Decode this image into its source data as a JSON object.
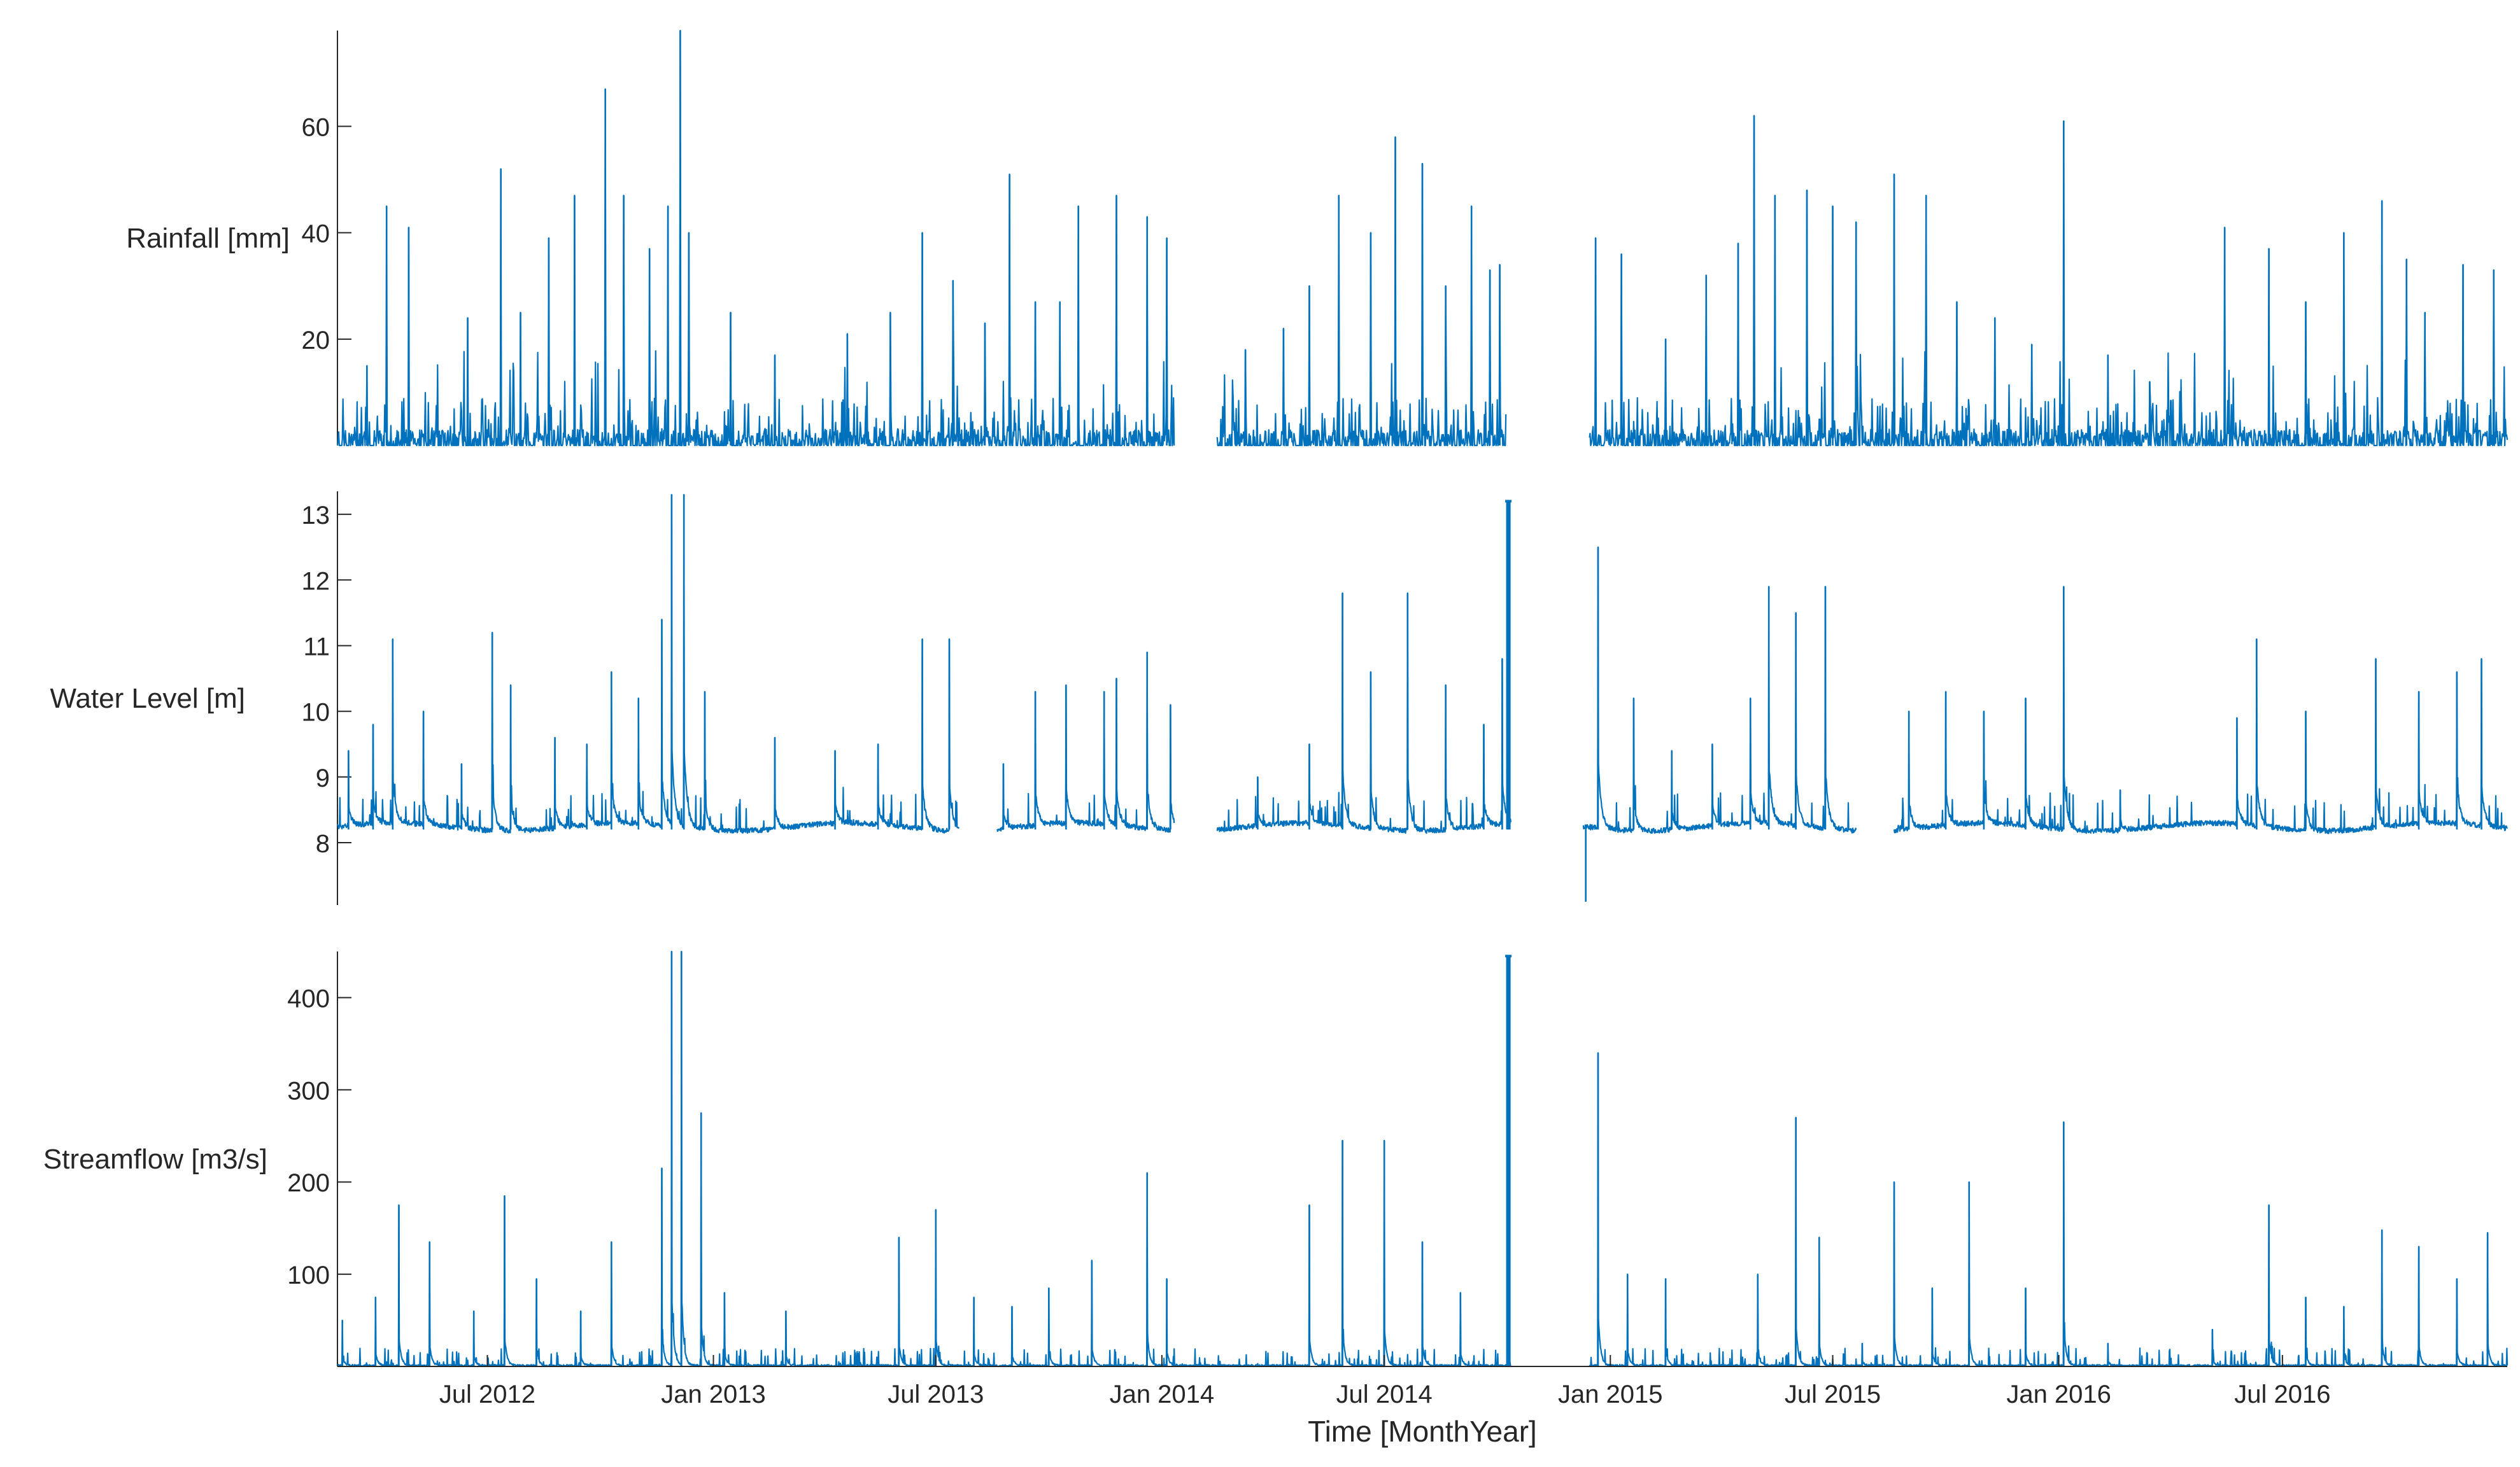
{
  "figure": {
    "xlabel": "Time [MonthYear]",
    "x_ticks": [
      "Jul 2012",
      "Jan 2013",
      "Jul 2013",
      "Jan 2014",
      "Jul 2014",
      "Jan 2015",
      "Jul 2015",
      "Jan 2016",
      "Jul 2016"
    ],
    "line_color": "#0072BD",
    "axis_color": "#262626"
  },
  "chart_data": [
    {
      "id": "rainfall",
      "type": "line",
      "ylabel": "Rainfall [mm]",
      "xlim": [
        "2012-03-01",
        "2016-12-31"
      ],
      "ylim": [
        0,
        78
      ],
      "y_ticks": [
        20,
        40,
        60
      ],
      "baseline": 0,
      "gaps": [
        [
          "2014-01-11",
          "2014-02-15"
        ],
        [
          "2014-10-08",
          "2014-12-15"
        ]
      ],
      "peaks": [
        {
          "x": "2012-03-25",
          "y": 15
        },
        {
          "x": "2012-04-10",
          "y": 45
        },
        {
          "x": "2012-04-28",
          "y": 41
        },
        {
          "x": "2012-06-15",
          "y": 24
        },
        {
          "x": "2012-07-12",
          "y": 52
        },
        {
          "x": "2012-07-28",
          "y": 25
        },
        {
          "x": "2012-08-20",
          "y": 39
        },
        {
          "x": "2012-09-10",
          "y": 47
        },
        {
          "x": "2012-10-05",
          "y": 67
        },
        {
          "x": "2012-10-20",
          "y": 47
        },
        {
          "x": "2012-11-10",
          "y": 37
        },
        {
          "x": "2012-11-25",
          "y": 45
        },
        {
          "x": "2012-12-05",
          "y": 78
        },
        {
          "x": "2012-12-12",
          "y": 40
        },
        {
          "x": "2013-01-15",
          "y": 25
        },
        {
          "x": "2013-02-20",
          "y": 17
        },
        {
          "x": "2013-04-20",
          "y": 21
        },
        {
          "x": "2013-05-25",
          "y": 25
        },
        {
          "x": "2013-06-20",
          "y": 40
        },
        {
          "x": "2013-07-15",
          "y": 31
        },
        {
          "x": "2013-08-10",
          "y": 23
        },
        {
          "x": "2013-08-30",
          "y": 51
        },
        {
          "x": "2013-09-20",
          "y": 27
        },
        {
          "x": "2013-10-10",
          "y": 27
        },
        {
          "x": "2013-10-25",
          "y": 45
        },
        {
          "x": "2013-11-25",
          "y": 47
        },
        {
          "x": "2013-12-20",
          "y": 43
        },
        {
          "x": "2014-01-05",
          "y": 39
        },
        {
          "x": "2014-03-10",
          "y": 18
        },
        {
          "x": "2014-04-10",
          "y": 22
        },
        {
          "x": "2014-05-01",
          "y": 30
        },
        {
          "x": "2014-05-25",
          "y": 47
        },
        {
          "x": "2014-06-20",
          "y": 40
        },
        {
          "x": "2014-07-10",
          "y": 58
        },
        {
          "x": "2014-08-01",
          "y": 53
        },
        {
          "x": "2014-08-20",
          "y": 30
        },
        {
          "x": "2014-09-10",
          "y": 45
        },
        {
          "x": "2014-09-25",
          "y": 33
        },
        {
          "x": "2014-10-03",
          "y": 34
        },
        {
          "x": "2014-12-20",
          "y": 39
        },
        {
          "x": "2015-01-10",
          "y": 36
        },
        {
          "x": "2015-02-15",
          "y": 20
        },
        {
          "x": "2015-03-20",
          "y": 32
        },
        {
          "x": "2015-04-15",
          "y": 38
        },
        {
          "x": "2015-04-28",
          "y": 62
        },
        {
          "x": "2015-05-15",
          "y": 47
        },
        {
          "x": "2015-06-10",
          "y": 48
        },
        {
          "x": "2015-07-01",
          "y": 45
        },
        {
          "x": "2015-07-20",
          "y": 42
        },
        {
          "x": "2015-08-20",
          "y": 51
        },
        {
          "x": "2015-09-15",
          "y": 47
        },
        {
          "x": "2015-10-10",
          "y": 27
        },
        {
          "x": "2015-11-10",
          "y": 24
        },
        {
          "x": "2015-12-10",
          "y": 19
        },
        {
          "x": "2016-01-05",
          "y": 61
        },
        {
          "x": "2016-02-10",
          "y": 17
        },
        {
          "x": "2016-03-15",
          "y": 12
        },
        {
          "x": "2016-05-15",
          "y": 41
        },
        {
          "x": "2016-06-20",
          "y": 37
        },
        {
          "x": "2016-07-20",
          "y": 27
        },
        {
          "x": "2016-08-20",
          "y": 40
        },
        {
          "x": "2016-09-20",
          "y": 46
        },
        {
          "x": "2016-10-10",
          "y": 35
        },
        {
          "x": "2016-10-25",
          "y": 25
        },
        {
          "x": "2016-11-25",
          "y": 34
        },
        {
          "x": "2016-12-20",
          "y": 33
        }
      ]
    },
    {
      "id": "water_level",
      "type": "line",
      "ylabel": "Water Level [m]",
      "xlim": [
        "2012-03-01",
        "2016-12-31"
      ],
      "ylim": [
        7.05,
        13.35
      ],
      "y_ticks": [
        8,
        9,
        10,
        11,
        12,
        13
      ],
      "baseline": 8.2,
      "gaps": [
        [
          "2013-07-20",
          "2013-08-20"
        ],
        [
          "2014-01-11",
          "2014-02-15"
        ],
        [
          "2014-10-12",
          "2014-12-10"
        ],
        [
          "2015-07-20",
          "2015-08-20"
        ]
      ],
      "events": [
        {
          "x": "2014-10-10",
          "y": 13.2,
          "kind": "spike"
        },
        {
          "x": "2014-12-12",
          "y": 7.1,
          "kind": "dip"
        }
      ],
      "peaks": [
        {
          "x": "2012-03-10",
          "y": 9.4
        },
        {
          "x": "2012-03-30",
          "y": 9.8
        },
        {
          "x": "2012-04-15",
          "y": 11.1
        },
        {
          "x": "2012-05-10",
          "y": 10.0
        },
        {
          "x": "2012-06-10",
          "y": 9.2
        },
        {
          "x": "2012-07-05",
          "y": 11.2
        },
        {
          "x": "2012-07-20",
          "y": 10.4
        },
        {
          "x": "2012-08-25",
          "y": 9.6
        },
        {
          "x": "2012-09-20",
          "y": 9.5
        },
        {
          "x": "2012-10-10",
          "y": 10.6
        },
        {
          "x": "2012-11-01",
          "y": 10.2
        },
        {
          "x": "2012-11-20",
          "y": 11.4
        },
        {
          "x": "2012-11-28",
          "y": 13.3
        },
        {
          "x": "2012-12-08",
          "y": 13.3
        },
        {
          "x": "2012-12-25",
          "y": 10.3
        },
        {
          "x": "2013-02-20",
          "y": 9.6
        },
        {
          "x": "2013-04-10",
          "y": 9.4
        },
        {
          "x": "2013-05-15",
          "y": 9.5
        },
        {
          "x": "2013-06-20",
          "y": 11.1
        },
        {
          "x": "2013-07-12",
          "y": 11.1
        },
        {
          "x": "2013-08-25",
          "y": 9.2
        },
        {
          "x": "2013-09-20",
          "y": 10.3
        },
        {
          "x": "2013-10-15",
          "y": 10.4
        },
        {
          "x": "2013-11-15",
          "y": 10.3
        },
        {
          "x": "2013-11-25",
          "y": 10.5
        },
        {
          "x": "2013-12-20",
          "y": 10.9
        },
        {
          "x": "2014-01-08",
          "y": 10.1
        },
        {
          "x": "2014-03-20",
          "y": 9.0
        },
        {
          "x": "2014-05-01",
          "y": 9.5
        },
        {
          "x": "2014-05-28",
          "y": 11.8
        },
        {
          "x": "2014-06-20",
          "y": 10.6
        },
        {
          "x": "2014-07-20",
          "y": 11.8
        },
        {
          "x": "2014-08-20",
          "y": 10.4
        },
        {
          "x": "2014-09-20",
          "y": 9.8
        },
        {
          "x": "2014-10-05",
          "y": 10.8
        },
        {
          "x": "2014-12-22",
          "y": 12.5
        },
        {
          "x": "2015-01-20",
          "y": 10.2
        },
        {
          "x": "2015-02-20",
          "y": 9.4
        },
        {
          "x": "2015-03-25",
          "y": 9.5
        },
        {
          "x": "2015-04-25",
          "y": 10.2
        },
        {
          "x": "2015-05-10",
          "y": 11.9
        },
        {
          "x": "2015-06-01",
          "y": 11.5
        },
        {
          "x": "2015-06-25",
          "y": 11.9
        },
        {
          "x": "2015-09-01",
          "y": 10.0
        },
        {
          "x": "2015-10-01",
          "y": 10.3
        },
        {
          "x": "2015-11-01",
          "y": 10.0
        },
        {
          "x": "2015-12-05",
          "y": 10.2
        },
        {
          "x": "2016-01-05",
          "y": 11.9
        },
        {
          "x": "2016-02-20",
          "y": 8.8
        },
        {
          "x": "2016-05-25",
          "y": 9.9
        },
        {
          "x": "2016-06-10",
          "y": 11.1
        },
        {
          "x": "2016-07-20",
          "y": 10.0
        },
        {
          "x": "2016-09-15",
          "y": 10.8
        },
        {
          "x": "2016-10-20",
          "y": 10.3
        },
        {
          "x": "2016-11-20",
          "y": 10.6
        },
        {
          "x": "2016-12-10",
          "y": 10.8
        }
      ]
    },
    {
      "id": "streamflow",
      "type": "line",
      "ylabel": "Streamflow [m3/s]",
      "xlim": [
        "2012-03-01",
        "2016-12-31"
      ],
      "ylim": [
        0,
        450
      ],
      "y_ticks": [
        100,
        200,
        300,
        400
      ],
      "baseline": 0,
      "gaps": [
        [
          "2014-10-12",
          "2014-12-15"
        ]
      ],
      "events": [
        {
          "x": "2014-10-10",
          "y": 445,
          "kind": "spike"
        }
      ],
      "peaks": [
        {
          "x": "2012-03-05",
          "y": 50
        },
        {
          "x": "2012-04-01",
          "y": 75
        },
        {
          "x": "2012-04-20",
          "y": 175
        },
        {
          "x": "2012-05-15",
          "y": 135
        },
        {
          "x": "2012-06-20",
          "y": 60
        },
        {
          "x": "2012-07-15",
          "y": 185
        },
        {
          "x": "2012-08-10",
          "y": 95
        },
        {
          "x": "2012-09-15",
          "y": 60
        },
        {
          "x": "2012-10-10",
          "y": 135
        },
        {
          "x": "2012-11-20",
          "y": 215
        },
        {
          "x": "2012-11-28",
          "y": 450
        },
        {
          "x": "2012-12-06",
          "y": 450
        },
        {
          "x": "2012-12-22",
          "y": 275
        },
        {
          "x": "2013-01-10",
          "y": 80
        },
        {
          "x": "2013-03-01",
          "y": 60
        },
        {
          "x": "2013-06-01",
          "y": 140
        },
        {
          "x": "2013-07-01",
          "y": 170
        },
        {
          "x": "2013-08-01",
          "y": 75
        },
        {
          "x": "2013-09-01",
          "y": 65
        },
        {
          "x": "2013-10-01",
          "y": 85
        },
        {
          "x": "2013-11-05",
          "y": 115
        },
        {
          "x": "2013-12-20",
          "y": 210
        },
        {
          "x": "2014-01-05",
          "y": 95
        },
        {
          "x": "2014-05-01",
          "y": 175
        },
        {
          "x": "2014-05-28",
          "y": 245
        },
        {
          "x": "2014-07-01",
          "y": 245
        },
        {
          "x": "2014-08-01",
          "y": 135
        },
        {
          "x": "2014-09-01",
          "y": 80
        },
        {
          "x": "2014-12-22",
          "y": 340
        },
        {
          "x": "2015-01-15",
          "y": 100
        },
        {
          "x": "2015-02-15",
          "y": 95
        },
        {
          "x": "2015-05-01",
          "y": 100
        },
        {
          "x": "2015-06-01",
          "y": 270
        },
        {
          "x": "2015-06-20",
          "y": 140
        },
        {
          "x": "2015-07-25",
          "y": 25
        },
        {
          "x": "2015-08-20",
          "y": 200
        },
        {
          "x": "2015-09-20",
          "y": 85
        },
        {
          "x": "2015-10-20",
          "y": 200
        },
        {
          "x": "2015-12-05",
          "y": 85
        },
        {
          "x": "2016-01-05",
          "y": 265
        },
        {
          "x": "2016-02-10",
          "y": 25
        },
        {
          "x": "2016-05-05",
          "y": 40
        },
        {
          "x": "2016-06-20",
          "y": 175
        },
        {
          "x": "2016-07-20",
          "y": 75
        },
        {
          "x": "2016-08-20",
          "y": 65
        },
        {
          "x": "2016-09-20",
          "y": 148
        },
        {
          "x": "2016-10-20",
          "y": 130
        },
        {
          "x": "2016-11-20",
          "y": 95
        },
        {
          "x": "2016-12-15",
          "y": 145
        }
      ]
    }
  ]
}
